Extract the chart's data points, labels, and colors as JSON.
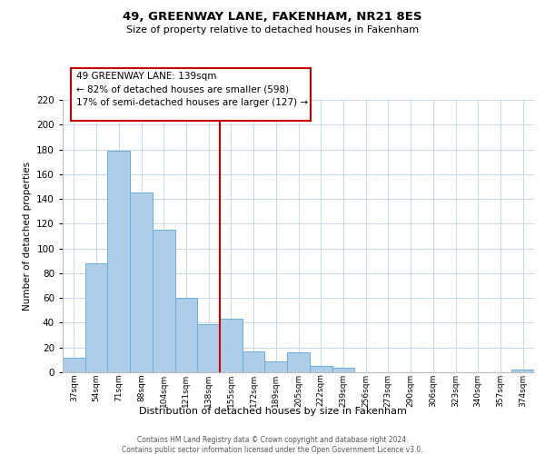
{
  "title": "49, GREENWAY LANE, FAKENHAM, NR21 8ES",
  "subtitle": "Size of property relative to detached houses in Fakenham",
  "xlabel": "Distribution of detached houses by size in Fakenham",
  "ylabel": "Number of detached properties",
  "bar_labels": [
    "37sqm",
    "54sqm",
    "71sqm",
    "88sqm",
    "104sqm",
    "121sqm",
    "138sqm",
    "155sqm",
    "172sqm",
    "189sqm",
    "205sqm",
    "222sqm",
    "239sqm",
    "256sqm",
    "273sqm",
    "290sqm",
    "306sqm",
    "323sqm",
    "340sqm",
    "357sqm",
    "374sqm"
  ],
  "bar_values": [
    12,
    88,
    179,
    145,
    115,
    60,
    39,
    43,
    17,
    9,
    16,
    5,
    4,
    0,
    0,
    0,
    0,
    0,
    0,
    0,
    2
  ],
  "bar_color": "#aecde8",
  "bar_edge_color": "#6aaed6",
  "vline_index": 6,
  "vline_color": "#cc0000",
  "ylim": [
    0,
    220
  ],
  "yticks": [
    0,
    20,
    40,
    60,
    80,
    100,
    120,
    140,
    160,
    180,
    200,
    220
  ],
  "annotation_title": "49 GREENWAY LANE: 139sqm",
  "annotation_line1": "← 82% of detached houses are smaller (598)",
  "annotation_line2": "17% of semi-detached houses are larger (127) →",
  "annotation_box_color": "#ffffff",
  "annotation_box_edge": "#cc0000",
  "footer_line1": "Contains HM Land Registry data © Crown copyright and database right 2024.",
  "footer_line2": "Contains public sector information licensed under the Open Government Licence v3.0.",
  "background_color": "#ffffff",
  "grid_color": "#c8daea"
}
